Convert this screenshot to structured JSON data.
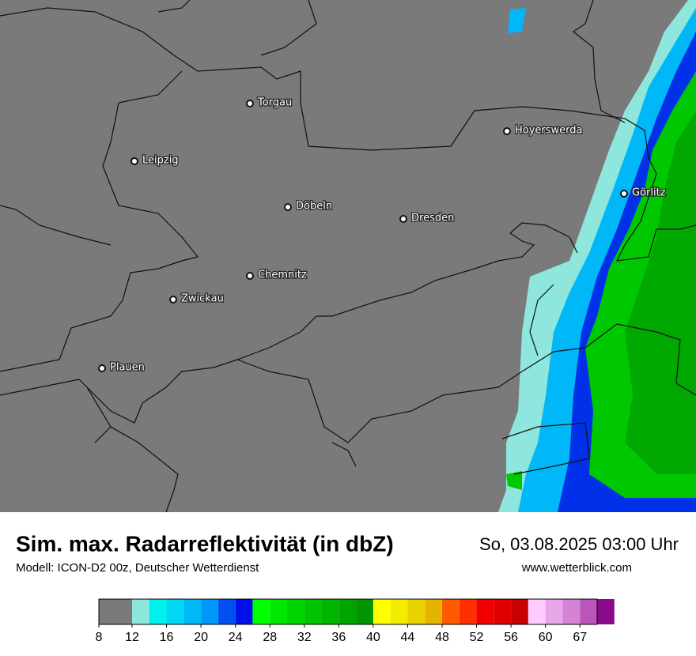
{
  "map": {
    "cities": [
      "Torgau",
      "Hoyerswerda",
      "Leipzig",
      "Görlitz",
      "Döbeln",
      "Dresden",
      "Chemnitz",
      "Zwickau",
      "Plauen"
    ]
  },
  "footer": {
    "title": "Sim. max. Radarreflektivität (in dbZ)",
    "datetime": "So, 03.08.2025 03:00 Uhr",
    "model": "Modell: ICON-D2 00z, Deutscher Wetterdienst",
    "website": "www.wetterblick.com"
  },
  "colorbar": {
    "bounds": [
      8,
      12,
      14,
      16,
      18,
      20,
      22,
      24,
      26,
      28,
      30,
      32,
      34,
      36,
      38,
      40,
      42,
      44,
      46,
      48,
      50,
      52,
      54,
      56,
      58,
      60,
      63,
      67,
      70
    ],
    "colors": [
      "#7a7a7a",
      "#8ee6dc",
      "#00f0ec",
      "#00d8f4",
      "#00b8f8",
      "#0098f8",
      "#0050f0",
      "#0010e8",
      "#00ff00",
      "#00e800",
      "#00d400",
      "#00c400",
      "#00b400",
      "#00a400",
      "#009400",
      "#ffff00",
      "#f4ec00",
      "#ead400",
      "#e4b400",
      "#ff5a00",
      "#ff3000",
      "#f00000",
      "#e00000",
      "#c80000",
      "#ffccff",
      "#eaa6ea",
      "#d484d4",
      "#bb55bb",
      "#8a0a8a"
    ],
    "ticks": [
      8,
      12,
      16,
      20,
      24,
      28,
      32,
      36,
      40,
      44,
      48,
      52,
      56,
      60,
      67
    ]
  }
}
